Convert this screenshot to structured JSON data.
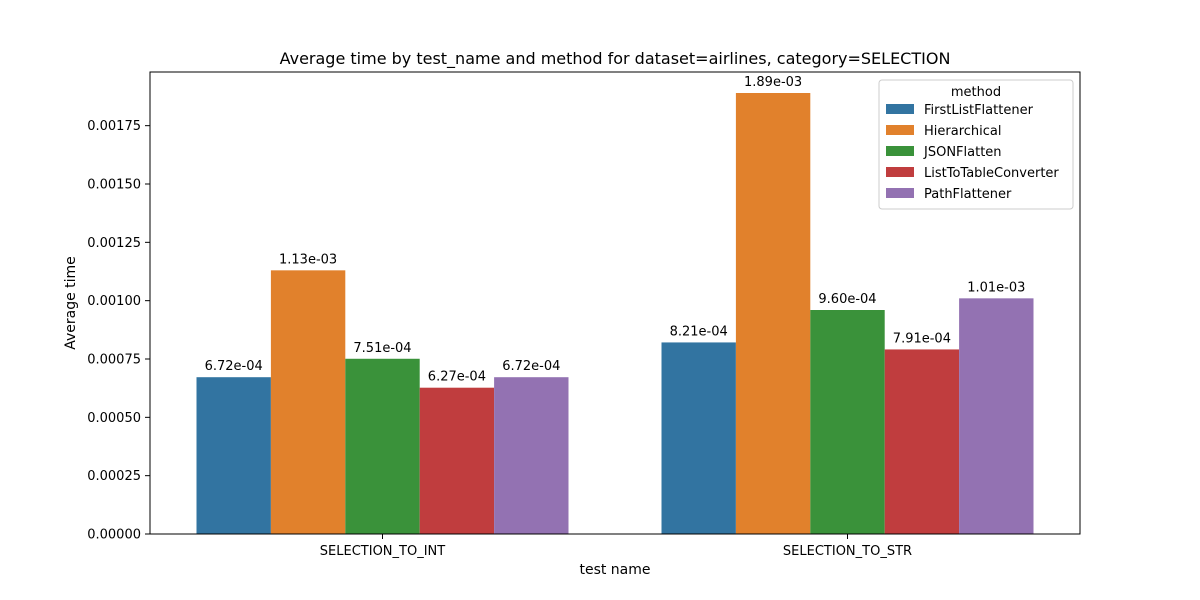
{
  "chart_data": {
    "type": "bar",
    "title": "Average time by test_name and method for dataset=airlines, category=SELECTION",
    "xlabel": "test name",
    "ylabel": "Average time",
    "categories": [
      "SELECTION_TO_INT",
      "SELECTION_TO_STR"
    ],
    "ylim": [
      0,
      0.00198
    ],
    "yticks": [
      "0.00000",
      "0.00025",
      "0.00050",
      "0.00075",
      "0.00100",
      "0.00125",
      "0.00150",
      "0.00175"
    ],
    "ytick_values": [
      0,
      0.00025,
      0.0005,
      0.00075,
      0.001,
      0.00125,
      0.0015,
      0.00175
    ],
    "grid": false,
    "legend": {
      "title": "method",
      "placement": "top-right"
    },
    "series": [
      {
        "name": "FirstListFlattener",
        "color": "#3274a1",
        "values": [
          0.000672,
          0.000821
        ],
        "labels": [
          "6.72e-04",
          "8.21e-04"
        ]
      },
      {
        "name": "Hierarchical",
        "color": "#e1812c",
        "values": [
          0.00113,
          0.00189
        ],
        "labels": [
          "1.13e-03",
          "1.89e-03"
        ]
      },
      {
        "name": "JSONFlatten",
        "color": "#3a923a",
        "values": [
          0.000751,
          0.00096
        ],
        "labels": [
          "7.51e-04",
          "9.60e-04"
        ]
      },
      {
        "name": "ListToTableConverter",
        "color": "#c03d3e",
        "values": [
          0.000627,
          0.000791
        ],
        "labels": [
          "6.27e-04",
          "7.91e-04"
        ]
      },
      {
        "name": "PathFlattener",
        "color": "#9372b2",
        "values": [
          0.000672,
          0.00101
        ],
        "labels": [
          "6.72e-04",
          "1.01e-03"
        ]
      }
    ]
  }
}
